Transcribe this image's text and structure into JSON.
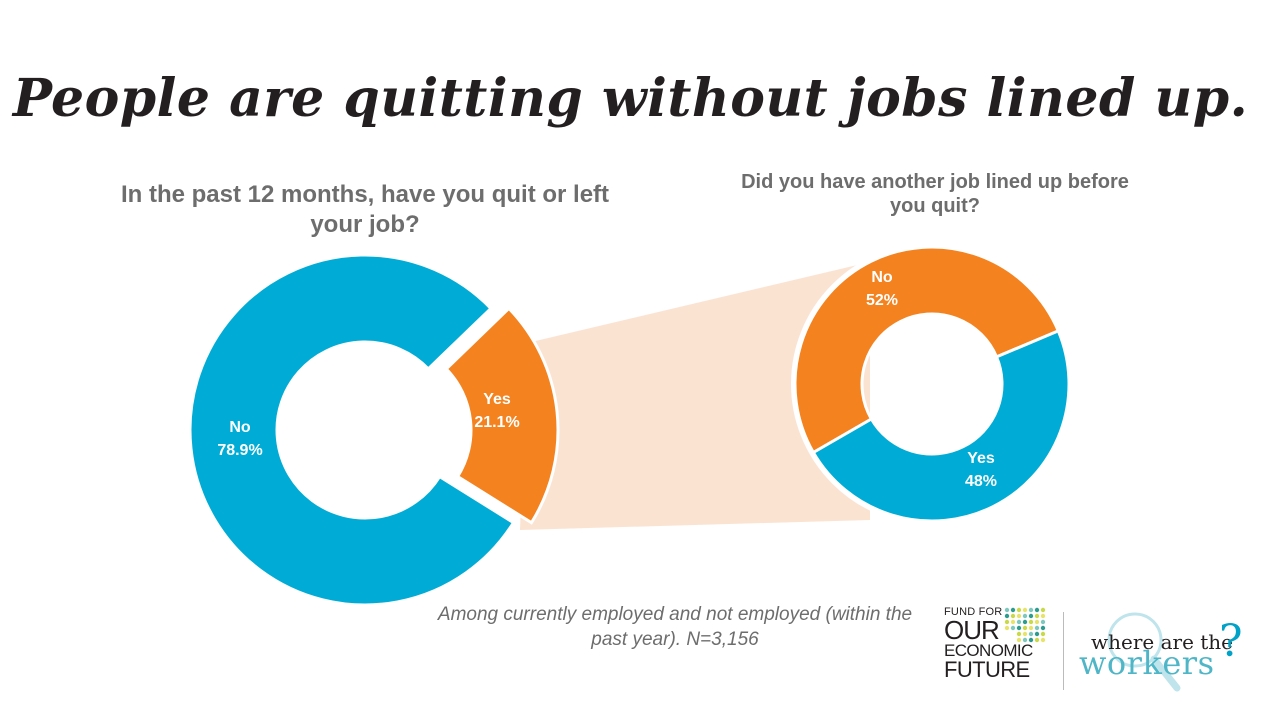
{
  "title": "People are quitting without jobs lined up.",
  "note": "Among currently employed and not employed (within the past year). N=3,156",
  "colors": {
    "blue": "#00acd6",
    "orange": "#f4821f",
    "connector": "#fbe3d2",
    "text_gray": "#6d6d6d",
    "title": "#231f20"
  },
  "chart_data": [
    {
      "type": "pie",
      "variant": "donut",
      "title": "In the past 12 months, have you quit or left your job?",
      "categories": [
        "Yes",
        "No"
      ],
      "values": [
        21.1,
        78.9
      ],
      "labels": [
        "21.1%",
        "78.9%"
      ],
      "colors": [
        "#f4821f",
        "#00acd6"
      ]
    },
    {
      "type": "pie",
      "variant": "donut",
      "title": "Did you have another job lined up before you quit?",
      "categories": [
        "No",
        "Yes"
      ],
      "values": [
        52,
        48
      ],
      "labels": [
        "52%",
        "48%"
      ],
      "colors": [
        "#f4821f",
        "#00acd6"
      ]
    }
  ],
  "logos": {
    "fund": {
      "line1": "FUND FOR",
      "line2": "OUR",
      "line3": "ECONOMIC",
      "line4": "FUTURE"
    },
    "workers": {
      "line1": "where are the",
      "line2": "workers",
      "mark": "?"
    }
  }
}
